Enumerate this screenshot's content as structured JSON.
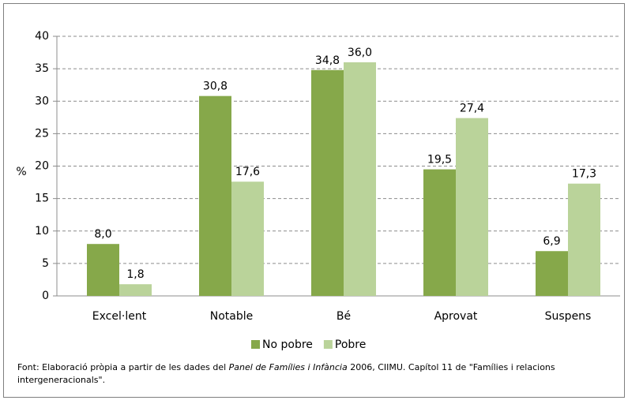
{
  "chart_data": {
    "type": "bar",
    "ylabel": "%",
    "categories": [
      "Excel·lent",
      "Notable",
      "Bé",
      "Aprovat",
      "Suspens"
    ],
    "series": [
      {
        "name": "No pobre",
        "color": "#86a84a",
        "values": [
          8.0,
          30.8,
          34.8,
          19.5,
          6.9
        ],
        "value_labels": [
          "8,0",
          "30,8",
          "34,8",
          "19,5",
          "6,9"
        ]
      },
      {
        "name": "Pobre",
        "color": "#bad39a",
        "values": [
          1.8,
          17.6,
          36.0,
          27.4,
          17.3
        ],
        "value_labels": [
          "1,8",
          "17,6",
          "36,0",
          "27,4",
          "17,3"
        ]
      }
    ],
    "ylim": [
      0,
      40
    ],
    "yticks": [
      0,
      5,
      10,
      15,
      20,
      25,
      30,
      35,
      40
    ],
    "grid": true,
    "legend": "bottom",
    "source": [
      "Font: Elaboració pròpia a partir de les dades del ",
      "Panel de Famílies i Infància",
      " 2006, CIIMU. Capítol 11 de \"Famílies i relacions",
      "intergeneracionals\"."
    ]
  }
}
